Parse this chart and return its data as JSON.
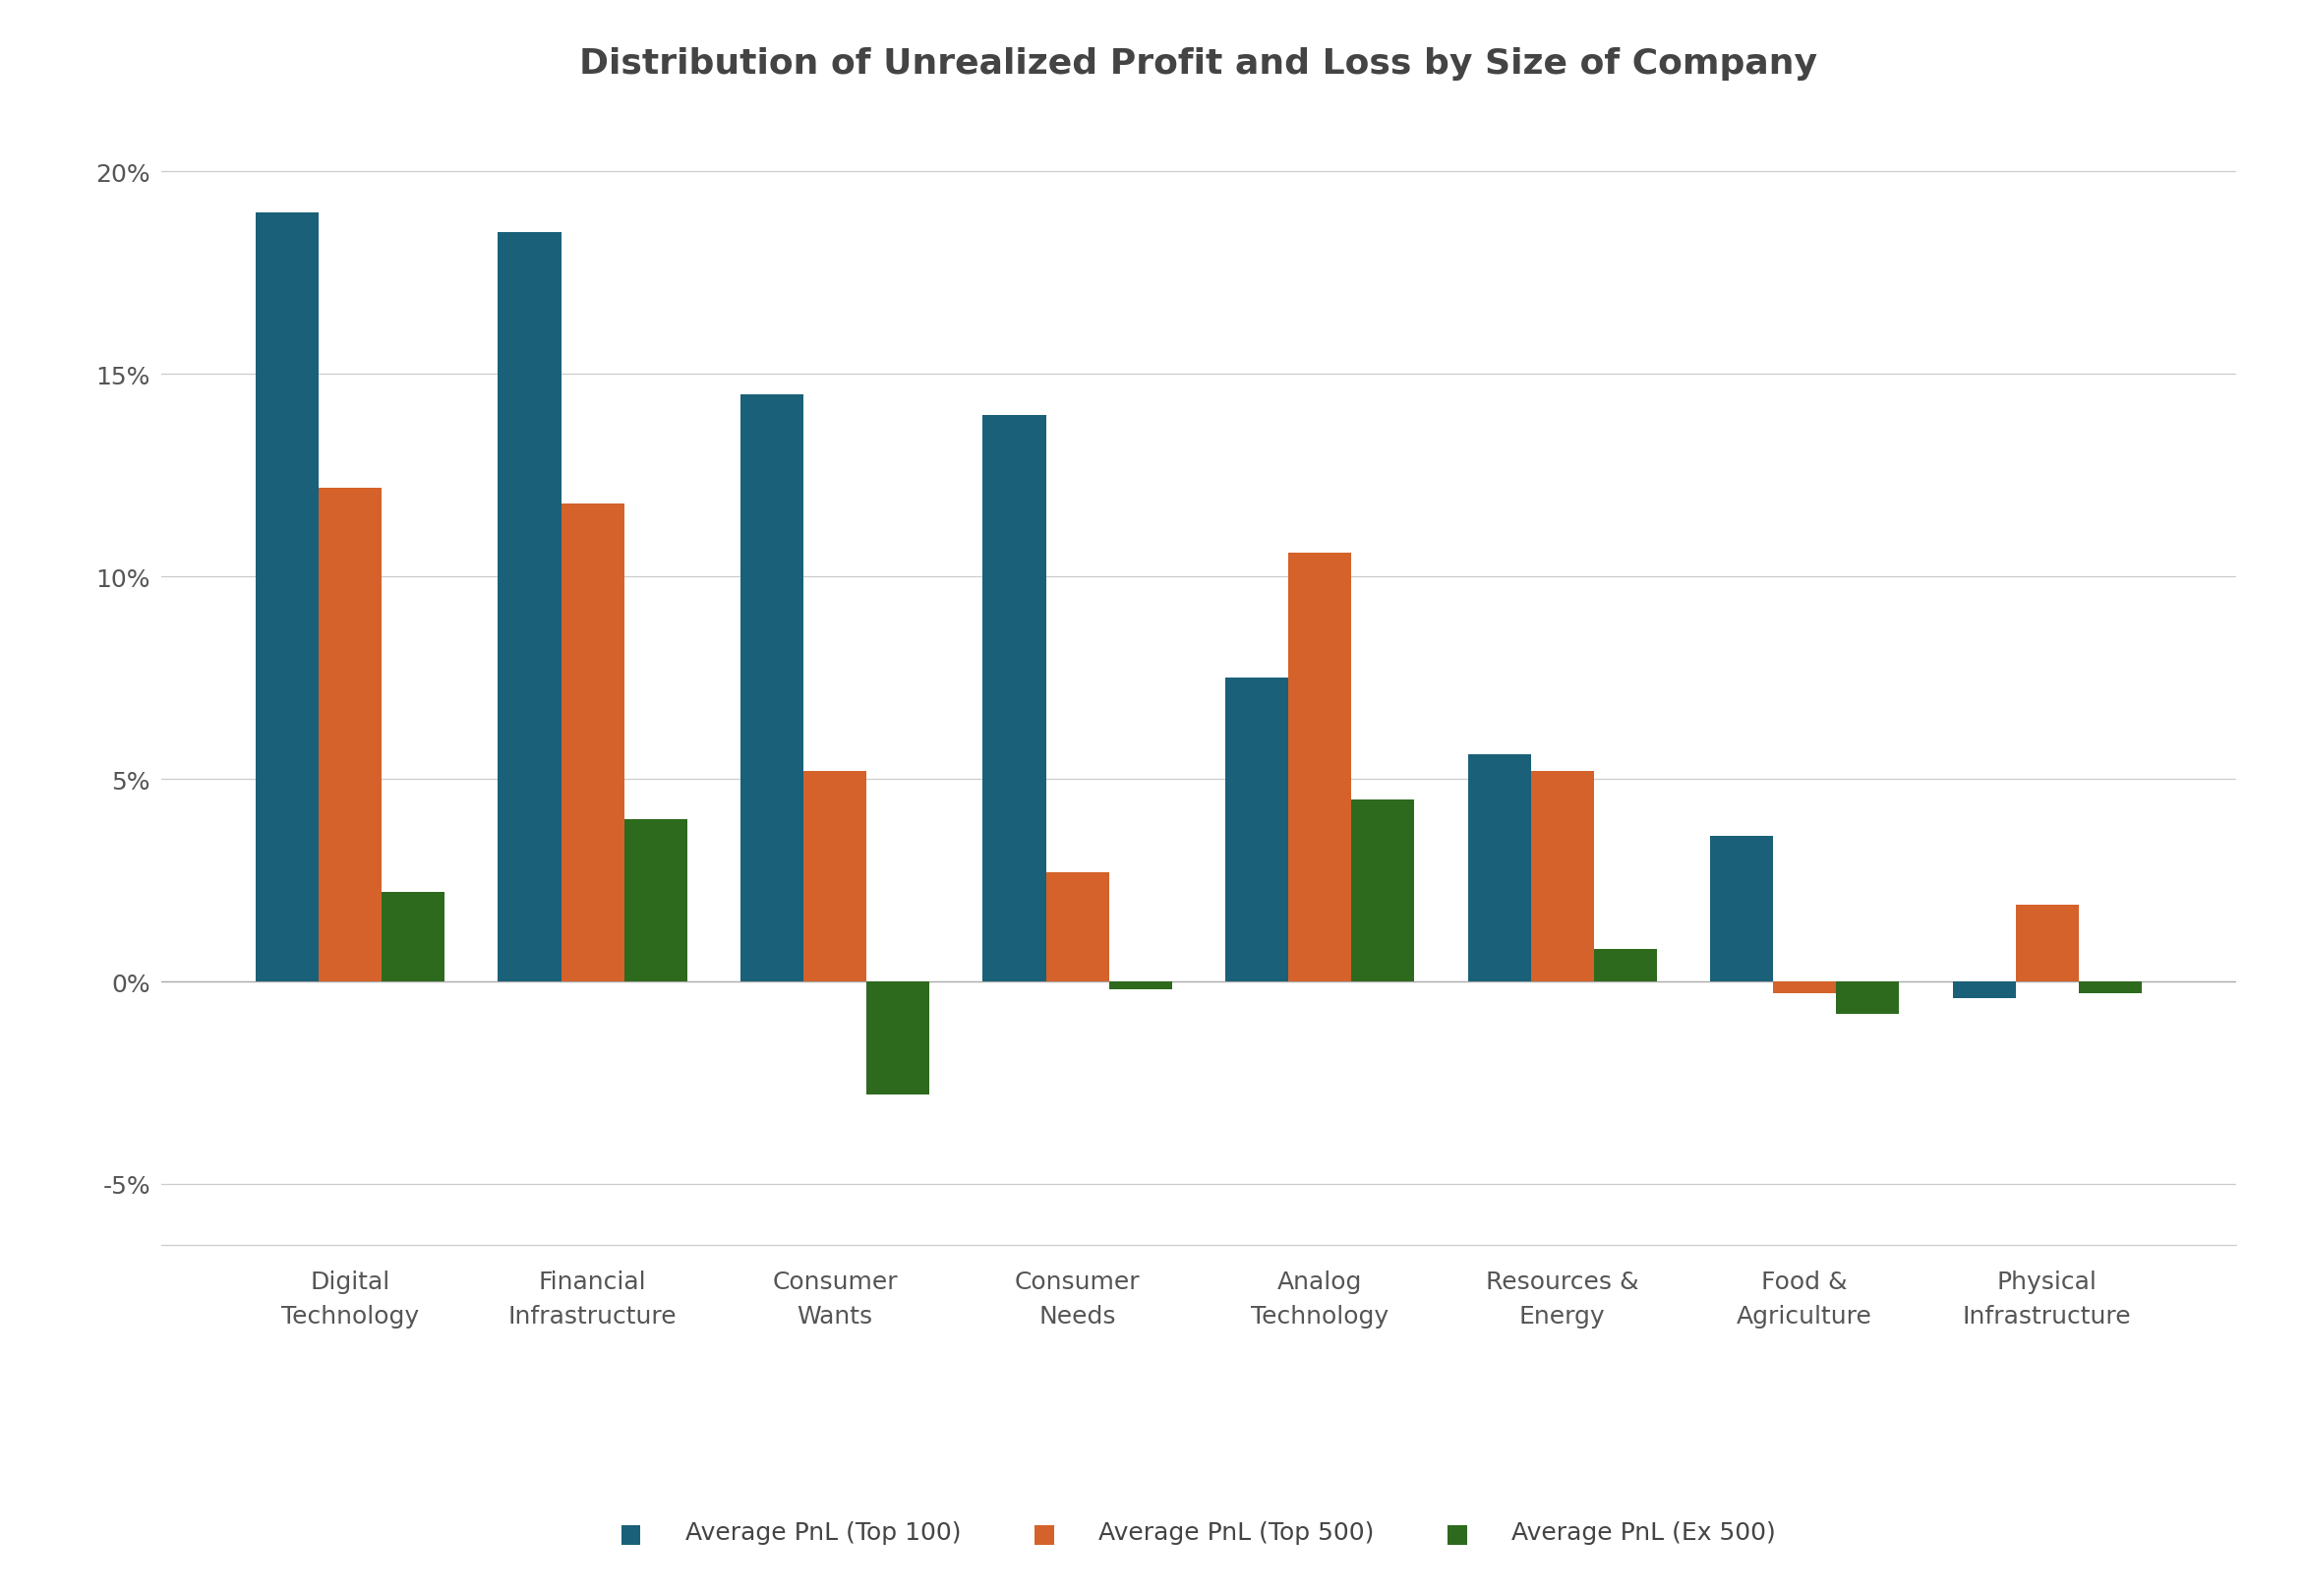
{
  "title": "Distribution of Unrealized Profit and Loss by Size of Company",
  "categories": [
    "Digital\nTechnology",
    "Financial\nInfrastructure",
    "Consumer\nWants",
    "Consumer\nNeeds",
    "Analog\nTechnology",
    "Resources &\nEnergy",
    "Food &\nAgriculture",
    "Physical\nInfrastructure"
  ],
  "series": {
    "top100": [
      0.19,
      0.185,
      0.145,
      0.14,
      0.075,
      0.056,
      0.036,
      -0.004
    ],
    "top500": [
      0.122,
      0.118,
      0.052,
      0.027,
      0.106,
      0.052,
      -0.003,
      0.019
    ],
    "ex500": [
      0.022,
      0.04,
      -0.028,
      -0.002,
      0.045,
      0.008,
      -0.008,
      -0.003
    ]
  },
  "colors": {
    "top100": "#1a6078",
    "top500": "#d4622a",
    "ex500": "#2d6a1e"
  },
  "legend_labels": [
    "Average PnL (Top 100)",
    "Average PnL (Top 500)",
    "Average PnL (Ex 500)"
  ],
  "ylim": [
    -0.065,
    0.215
  ],
  "yticks": [
    -0.05,
    0.0,
    0.05,
    0.1,
    0.15,
    0.2
  ],
  "ytick_labels": [
    "-5%",
    "0%",
    "5%",
    "10%",
    "15%",
    "20%"
  ],
  "background_color": "#ffffff",
  "title_fontsize": 26,
  "tick_fontsize": 18,
  "legend_fontsize": 18,
  "bar_width": 0.26
}
